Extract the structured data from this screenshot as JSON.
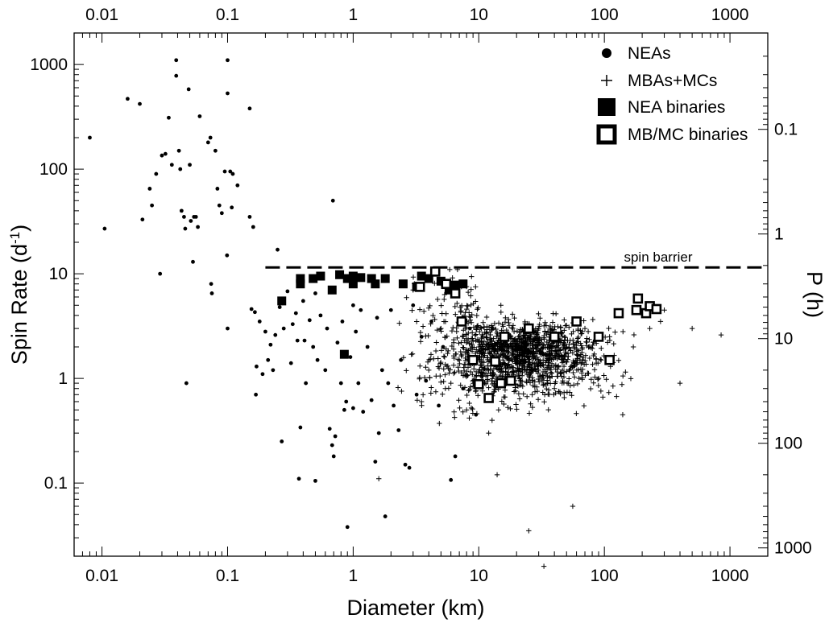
{
  "chart_data": {
    "type": "scatter",
    "xscale": "log",
    "yscale": "log",
    "xlim": [
      0.006,
      2000
    ],
    "ylim": [
      0.02,
      2000
    ],
    "xlabel": "Diameter (km)",
    "ylabel": "Spin Rate (d",
    "ylabel_sup": "-1",
    "ylabel_end": ")",
    "y2label": "P (h)",
    "x_ticks": [
      "0.01",
      "0.1",
      "1",
      "10",
      "100",
      "1000"
    ],
    "x_tick_values": [
      0.01,
      0.1,
      1,
      10,
      100,
      1000
    ],
    "y_ticks": [
      "0.1",
      "1",
      "10",
      "100",
      "1000"
    ],
    "y_tick_values": [
      0.1,
      1,
      10,
      100,
      1000
    ],
    "y2_ticks": [
      "0.1",
      "1",
      "10",
      "100",
      "1000"
    ],
    "y2_tick_values_hours": [
      0.1,
      1,
      10,
      100,
      1000
    ],
    "spin_barrier": {
      "label": "spin barrier",
      "spin_rate": 11.5,
      "x_start": 0.2,
      "x_end": 2000
    },
    "legend_position": "top-right",
    "legend": [
      {
        "name": "NEAs",
        "marker": "dot"
      },
      {
        "name": "MBAs+MCs",
        "marker": "plus"
      },
      {
        "name": "NEA binaries",
        "marker": "filled-square"
      },
      {
        "name": "MB/MC binaries",
        "marker": "open-square"
      }
    ],
    "series": [
      {
        "name": "NEAs",
        "marker": "dot",
        "points": [
          [
            0.008,
            200
          ],
          [
            0.0105,
            27
          ],
          [
            0.016,
            470
          ],
          [
            0.02,
            420
          ],
          [
            0.021,
            33
          ],
          [
            0.024,
            65
          ],
          [
            0.025,
            45
          ],
          [
            0.027,
            90
          ],
          [
            0.029,
            10
          ],
          [
            0.03,
            135
          ],
          [
            0.032,
            140
          ],
          [
            0.034,
            310
          ],
          [
            0.036,
            110
          ],
          [
            0.039,
            1100
          ],
          [
            0.039,
            780
          ],
          [
            0.041,
            150
          ],
          [
            0.042,
            100
          ],
          [
            0.043,
            40
          ],
          [
            0.045,
            35
          ],
          [
            0.046,
            27
          ],
          [
            0.047,
            0.9
          ],
          [
            0.049,
            580
          ],
          [
            0.05,
            110
          ],
          [
            0.051,
            32
          ],
          [
            0.053,
            13
          ],
          [
            0.054,
            35
          ],
          [
            0.056,
            35
          ],
          [
            0.058,
            28
          ],
          [
            0.06,
            320
          ],
          [
            0.07,
            180
          ],
          [
            0.073,
            200
          ],
          [
            0.074,
            8
          ],
          [
            0.075,
            6.5
          ],
          [
            0.08,
            150
          ],
          [
            0.083,
            65
          ],
          [
            0.086,
            45
          ],
          [
            0.09,
            38
          ],
          [
            0.095,
            95
          ],
          [
            0.099,
            15
          ],
          [
            0.1,
            3
          ],
          [
            0.1,
            1100
          ],
          [
            0.1,
            530
          ],
          [
            0.105,
            95
          ],
          [
            0.108,
            43
          ],
          [
            0.11,
            90
          ],
          [
            0.12,
            70
          ],
          [
            0.15,
            380
          ],
          [
            0.15,
            35
          ],
          [
            0.155,
            4.6
          ],
          [
            0.16,
            28
          ],
          [
            0.165,
            4.3
          ],
          [
            0.168,
            0.7
          ],
          [
            0.17,
            1.3
          ],
          [
            0.18,
            3.5
          ],
          [
            0.19,
            1.1
          ],
          [
            0.2,
            2.8
          ],
          [
            0.21,
            1.5
          ],
          [
            0.22,
            2.1
          ],
          [
            0.23,
            1.2
          ],
          [
            0.24,
            2.6
          ],
          [
            0.25,
            17
          ],
          [
            0.26,
            4.8
          ],
          [
            0.27,
            0.25
          ],
          [
            0.28,
            3
          ],
          [
            0.3,
            6.8
          ],
          [
            0.32,
            1.4
          ],
          [
            0.33,
            3.3
          ],
          [
            0.35,
            4.2
          ],
          [
            0.36,
            2.3
          ],
          [
            0.37,
            0.11
          ],
          [
            0.38,
            0.34
          ],
          [
            0.4,
            5.5
          ],
          [
            0.41,
            2.3
          ],
          [
            0.42,
            0.9
          ],
          [
            0.45,
            3.6
          ],
          [
            0.48,
            2
          ],
          [
            0.5,
            6.5
          ],
          [
            0.5,
            0.105
          ],
          [
            0.52,
            1.5
          ],
          [
            0.55,
            4
          ],
          [
            0.6,
            1.2
          ],
          [
            0.62,
            3
          ],
          [
            0.65,
            0.33
          ],
          [
            0.68,
            0.23
          ],
          [
            0.69,
            50
          ],
          [
            0.7,
            0.18
          ],
          [
            0.72,
            0.28
          ],
          [
            0.75,
            2.2
          ],
          [
            0.8,
            0.9
          ],
          [
            0.82,
            3.5
          ],
          [
            0.85,
            0.5
          ],
          [
            0.88,
            0.6
          ],
          [
            0.9,
            0.038
          ],
          [
            0.95,
            1.6
          ],
          [
            1.0,
            5
          ],
          [
            1.0,
            0.52
          ],
          [
            1.05,
            2.8
          ],
          [
            1.1,
            0.9
          ],
          [
            1.15,
            4.5
          ],
          [
            1.2,
            0.48
          ],
          [
            1.3,
            2
          ],
          [
            1.4,
            0.62
          ],
          [
            1.5,
            0.16
          ],
          [
            1.55,
            3.8
          ],
          [
            1.6,
            0.3
          ],
          [
            1.7,
            1.2
          ],
          [
            1.8,
            0.048
          ],
          [
            1.9,
            0.9
          ],
          [
            2.0,
            4.5
          ],
          [
            2.1,
            0.55
          ],
          [
            2.3,
            0.32
          ],
          [
            2.4,
            1.5
          ],
          [
            2.6,
            0.15
          ],
          [
            2.8,
            0.14
          ],
          [
            3.0,
            5
          ],
          [
            3.2,
            0.7
          ],
          [
            3.5,
            2.5
          ],
          [
            3.8,
            0.95
          ],
          [
            4.2,
            3.5
          ],
          [
            4.8,
            0.55
          ],
          [
            5.2,
            2
          ],
          [
            6.0,
            0.107
          ],
          [
            6.5,
            0.18
          ],
          [
            7.5,
            0.8
          ],
          [
            8.5,
            3
          ],
          [
            9.5,
            0.45
          ]
        ]
      },
      {
        "name": "NEA binaries",
        "marker": "filled-square",
        "points": [
          [
            0.27,
            5.5
          ],
          [
            0.38,
            9
          ],
          [
            0.38,
            8
          ],
          [
            0.48,
            9
          ],
          [
            0.55,
            9.5
          ],
          [
            0.68,
            7
          ],
          [
            0.78,
            9.8
          ],
          [
            0.85,
            1.7
          ],
          [
            0.9,
            9
          ],
          [
            1.0,
            9.5
          ],
          [
            1.0,
            8
          ],
          [
            1.15,
            9.2
          ],
          [
            1.4,
            9
          ],
          [
            1.5,
            8
          ],
          [
            1.8,
            9
          ],
          [
            2.5,
            8
          ],
          [
            3.2,
            7.5
          ],
          [
            3.5,
            9.5
          ],
          [
            4.0,
            9
          ],
          [
            5.0,
            8.5
          ],
          [
            5.8,
            7
          ],
          [
            6.5,
            7.8
          ],
          [
            7.5,
            8
          ]
        ]
      },
      {
        "name": "MB/MC binaries",
        "marker": "open-square",
        "points": [
          [
            3.4,
            7.5
          ],
          [
            4.5,
            10.5
          ],
          [
            5.5,
            8
          ],
          [
            6.5,
            6.5
          ],
          [
            7.3,
            3.5
          ],
          [
            9.0,
            1.5
          ],
          [
            10.0,
            0.88
          ],
          [
            12.0,
            0.65
          ],
          [
            13.5,
            1.45
          ],
          [
            15.0,
            0.9
          ],
          [
            16.0,
            2.5
          ],
          [
            18.0,
            0.95
          ],
          [
            25.0,
            3
          ],
          [
            40.0,
            2.5
          ],
          [
            60.0,
            3.5
          ],
          [
            90.0,
            2.5
          ],
          [
            110.0,
            1.5
          ],
          [
            130.0,
            4.2
          ],
          [
            180.0,
            4.5
          ],
          [
            185.0,
            5.8
          ],
          [
            215.0,
            4.2
          ],
          [
            230.0,
            4.9
          ],
          [
            260.0,
            4.6
          ]
        ]
      },
      {
        "name": "MBAs+MCs",
        "marker": "plus",
        "generated_points": 1400,
        "points": [
          [
            1.6,
            0.11
          ],
          [
            3.0,
            7
          ],
          [
            3.5,
            0.6
          ],
          [
            4.0,
            1.2
          ],
          [
            5.0,
            3
          ],
          [
            6.0,
            0.9
          ],
          [
            8.0,
            0.5
          ],
          [
            10.0,
            2
          ],
          [
            12.0,
            0.3
          ],
          [
            14.0,
            0.12
          ],
          [
            15.0,
            5
          ],
          [
            20.0,
            1.5
          ],
          [
            25.0,
            0.035
          ],
          [
            30.0,
            3
          ],
          [
            33.0,
            0.016
          ],
          [
            40.0,
            0.8
          ],
          [
            50.0,
            2
          ],
          [
            56.0,
            0.06
          ],
          [
            70.0,
            3
          ],
          [
            90.0,
            1
          ],
          [
            110.0,
            2.5
          ],
          [
            140.0,
            0.45
          ],
          [
            170.0,
            2
          ],
          [
            230.0,
            3
          ],
          [
            280.0,
            3.5
          ],
          [
            300.0,
            4.5
          ],
          [
            400.0,
            0.9
          ],
          [
            500.0,
            3
          ],
          [
            850.0,
            2.6
          ]
        ]
      }
    ]
  }
}
